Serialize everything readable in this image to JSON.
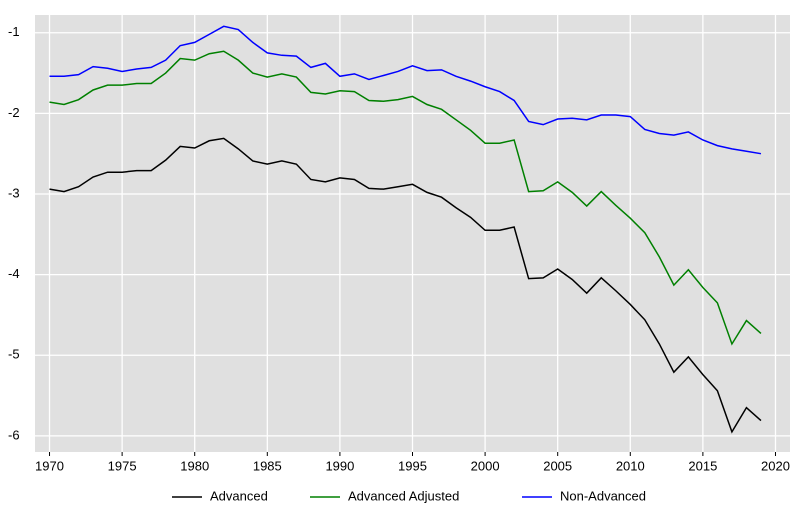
{
  "chart_data": {
    "type": "line",
    "x": [
      1970,
      1971,
      1972,
      1973,
      1974,
      1975,
      1976,
      1977,
      1978,
      1979,
      1980,
      1981,
      1982,
      1983,
      1984,
      1985,
      1986,
      1987,
      1988,
      1989,
      1990,
      1991,
      1992,
      1993,
      1994,
      1995,
      1996,
      1997,
      1998,
      1999,
      2000,
      2001,
      2002,
      2003,
      2004,
      2005,
      2006,
      2007,
      2008,
      2009,
      2010,
      2011,
      2012,
      2013,
      2014,
      2015,
      2016,
      2017,
      2018,
      2019
    ],
    "series": [
      {
        "name": "Advanced",
        "color": "#000000",
        "values": [
          -2.94,
          -2.97,
          -2.91,
          -2.79,
          -2.73,
          -2.73,
          -2.71,
          -2.71,
          -2.58,
          -2.41,
          -2.43,
          -2.34,
          -2.31,
          -2.44,
          -2.59,
          -2.63,
          -2.59,
          -2.63,
          -2.82,
          -2.85,
          -2.8,
          -2.82,
          -2.93,
          -2.94,
          -2.91,
          -2.88,
          -2.98,
          -3.04,
          -3.17,
          -3.29,
          -3.45,
          -3.45,
          -3.41,
          -4.05,
          -4.04,
          -3.93,
          -4.06,
          -4.23,
          -4.04,
          -4.2,
          -4.37,
          -4.56,
          -4.86,
          -5.21,
          -5.02,
          -5.24,
          -5.44,
          -5.95,
          -5.65,
          -5.81
        ]
      },
      {
        "name": "Advanced Adjusted",
        "color": "#008000",
        "values": [
          -1.86,
          -1.89,
          -1.83,
          -1.71,
          -1.65,
          -1.65,
          -1.63,
          -1.63,
          -1.5,
          -1.32,
          -1.34,
          -1.26,
          -1.23,
          -1.34,
          -1.5,
          -1.55,
          -1.51,
          -1.55,
          -1.74,
          -1.76,
          -1.72,
          -1.73,
          -1.84,
          -1.85,
          -1.83,
          -1.79,
          -1.89,
          -1.95,
          -2.08,
          -2.21,
          -2.37,
          -2.37,
          -2.33,
          -2.97,
          -2.96,
          -2.85,
          -2.98,
          -3.15,
          -2.97,
          -3.14,
          -3.3,
          -3.48,
          -3.78,
          -4.13,
          -3.94,
          -4.16,
          -4.35,
          -4.86,
          -4.57,
          -4.73
        ]
      },
      {
        "name": "Non-Advanced",
        "color": "#0000ff",
        "values": [
          -1.54,
          -1.54,
          -1.52,
          -1.42,
          -1.44,
          -1.48,
          -1.45,
          -1.43,
          -1.34,
          -1.16,
          -1.12,
          -1.02,
          -0.92,
          -0.96,
          -1.12,
          -1.25,
          -1.28,
          -1.29,
          -1.43,
          -1.38,
          -1.54,
          -1.51,
          -1.58,
          -1.53,
          -1.48,
          -1.41,
          -1.47,
          -1.46,
          -1.54,
          -1.6,
          -1.67,
          -1.73,
          -1.84,
          -2.1,
          -2.14,
          -2.07,
          -2.06,
          -2.08,
          -2.02,
          -2.02,
          -2.04,
          -2.2,
          -2.25,
          -2.27,
          -2.23,
          -2.33,
          -2.4,
          -2.44,
          -2.47,
          -2.5
        ]
      }
    ],
    "xlim": [
      1969,
      2021
    ],
    "xticks": [
      1970,
      1975,
      1980,
      1985,
      1990,
      1995,
      2000,
      2005,
      2010,
      2015,
      2020
    ],
    "ylim": [
      -6.2,
      -0.78
    ],
    "yticks": [
      -6,
      -5,
      -4,
      -3,
      -2,
      -1
    ],
    "grid": true,
    "legend": "bottom"
  }
}
